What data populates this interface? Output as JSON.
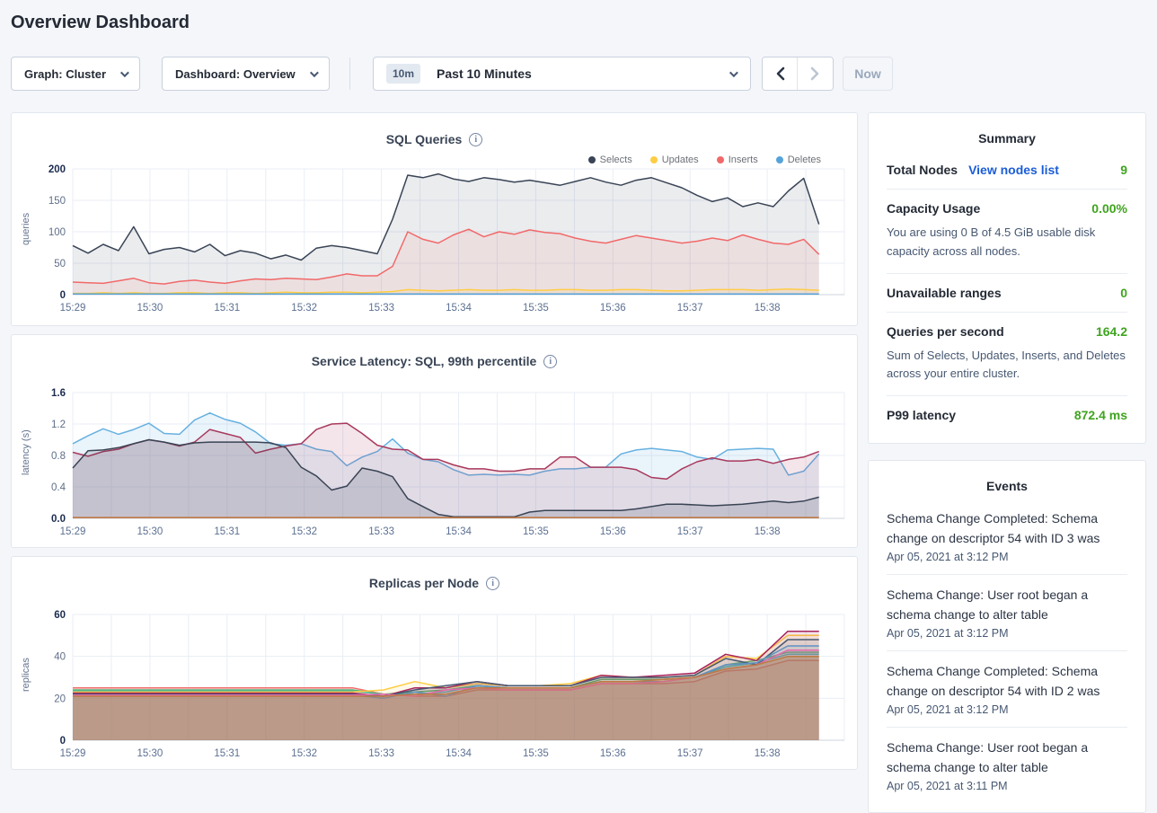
{
  "page": {
    "title": "Overview Dashboard"
  },
  "toolbar": {
    "graph_dropdown": {
      "label": "Graph: Cluster"
    },
    "dashboard_dropdown": {
      "label": "Dashboard: Overview"
    },
    "time_selector": {
      "badge": "10m",
      "label": "Past 10 Minutes"
    },
    "prev_button": "previous time range",
    "next_button": "next time range",
    "now_button": "Now"
  },
  "summary": {
    "title": "Summary",
    "value_color": "#3fa41f",
    "link_color": "#1b5dd6",
    "items": [
      {
        "label": "Total Nodes",
        "link": "View nodes list",
        "value": "9"
      },
      {
        "label": "Capacity Usage",
        "value": "0.00%",
        "description": "You are using 0 B of 4.5 GiB usable disk capacity across all nodes."
      },
      {
        "label": "Unavailable ranges",
        "value": "0"
      },
      {
        "label": "Queries per second",
        "value": "164.2",
        "description": "Sum of Selects, Updates, Inserts, and Deletes across your entire cluster."
      },
      {
        "label": "P99 latency",
        "value": "872.4 ms"
      }
    ]
  },
  "events": {
    "title": "Events",
    "items": [
      {
        "message": "Schema Change Completed: Schema change on descriptor 54 with ID 3 was",
        "timestamp": "Apr 05, 2021 at 3:12 PM"
      },
      {
        "message": "Schema Change: User root began a schema change to alter table",
        "timestamp": "Apr 05, 2021 at 3:12 PM"
      },
      {
        "message": "Schema Change Completed: Schema change on descriptor 54 with ID 2 was",
        "timestamp": "Apr 05, 2021 at 3:12 PM"
      },
      {
        "message": "Schema Change: User root began a schema change to alter table",
        "timestamp": "Apr 05, 2021 at 3:11 PM"
      }
    ]
  },
  "chart_data": [
    {
      "type": "area",
      "title": "SQL Queries",
      "ylabel": "queries",
      "ylim": [
        0,
        200
      ],
      "y_tick_values": [
        0,
        50,
        100,
        150,
        200
      ],
      "y_tick_labels": [
        "0",
        "50",
        "100",
        "150",
        "200"
      ],
      "x_ticks": [
        "15:29",
        "15:30",
        "15:31",
        "15:32",
        "15:33",
        "15:34",
        "15:35",
        "15:36",
        "15:37",
        "15:38"
      ],
      "x_range_minutes": 10,
      "data_end_fraction": 0.967,
      "grid": true,
      "legend_position": "top-right",
      "legend": [
        {
          "name": "Selects",
          "color": "#394455"
        },
        {
          "name": "Updates",
          "color": "#ffcd44"
        },
        {
          "name": "Inserts",
          "color": "#f16969"
        },
        {
          "name": "Deletes",
          "color": "#56a3d9"
        }
      ],
      "series": [
        {
          "name": "Selects",
          "color": "#394455",
          "fill": "rgba(57,68,85,0.10)",
          "values": [
            78,
            66,
            80,
            70,
            108,
            65,
            72,
            75,
            68,
            80,
            62,
            70,
            66,
            57,
            63,
            55,
            74,
            78,
            75,
            70,
            65,
            120,
            190,
            186,
            192,
            184,
            180,
            186,
            183,
            179,
            182,
            178,
            174,
            180,
            186,
            179,
            174,
            182,
            186,
            178,
            170,
            158,
            148,
            154,
            140,
            146,
            140,
            165,
            185,
            112
          ]
        },
        {
          "name": "Inserts",
          "color": "#f16969",
          "fill": "rgba(241,105,105,0.10)",
          "values": [
            20,
            19,
            18,
            22,
            26,
            19,
            17,
            21,
            23,
            20,
            18,
            22,
            25,
            24,
            26,
            25,
            24,
            28,
            33,
            30,
            30,
            45,
            100,
            88,
            82,
            95,
            104,
            92,
            100,
            96,
            103,
            99,
            97,
            90,
            85,
            82,
            88,
            94,
            90,
            86,
            82,
            85,
            90,
            86,
            95,
            88,
            82,
            80,
            88,
            64
          ]
        },
        {
          "name": "Updates",
          "color": "#ffcd44",
          "fill": "rgba(255,205,68,0.12)",
          "values": [
            2,
            2,
            3,
            2,
            3,
            2,
            2,
            3,
            3,
            2,
            3,
            3,
            2,
            3,
            4,
            3,
            3,
            4,
            4,
            3,
            4,
            5,
            8,
            7,
            6,
            7,
            8,
            7,
            7,
            8,
            7,
            7,
            8,
            8,
            7,
            7,
            8,
            8,
            7,
            6,
            6,
            7,
            8,
            8,
            8,
            7,
            8,
            9,
            8,
            7
          ]
        },
        {
          "name": "Deletes",
          "color": "#56a3d9",
          "fill": "rgba(86,163,217,0.12)",
          "values": [
            1,
            1,
            1,
            1,
            1,
            1,
            1,
            1,
            1,
            1,
            1,
            1,
            1,
            1,
            1,
            1,
            1,
            1,
            1,
            1,
            1,
            1,
            1,
            1,
            1,
            1,
            1,
            1,
            1,
            1,
            1,
            1,
            1,
            1,
            1,
            1,
            1,
            1,
            1,
            1,
            1,
            1,
            1,
            1,
            1,
            1,
            1,
            1,
            1,
            1
          ]
        }
      ]
    },
    {
      "type": "area",
      "title": "Service Latency: SQL, 99th percentile",
      "ylabel": "latency (s)",
      "ylim": [
        0,
        1.6
      ],
      "y_tick_values": [
        0,
        0.4,
        0.8,
        1.2,
        1.6
      ],
      "y_tick_labels": [
        "0.0",
        "0.4",
        "0.8",
        "1.2",
        "1.6"
      ],
      "x_ticks": [
        "15:29",
        "15:30",
        "15:31",
        "15:32",
        "15:33",
        "15:34",
        "15:35",
        "15:36",
        "15:37",
        "15:38"
      ],
      "x_range_minutes": 10,
      "data_end_fraction": 0.967,
      "grid": true,
      "series": [
        {
          "name": "node-blue",
          "color": "#67b1e0",
          "fill": "rgba(103,177,224,0.14)",
          "values": [
            0.95,
            1.05,
            1.14,
            1.07,
            1.13,
            1.21,
            1.08,
            1.07,
            1.25,
            1.34,
            1.26,
            1.21,
            1.1,
            0.95,
            0.93,
            0.95,
            0.88,
            0.85,
            0.67,
            0.78,
            0.85,
            1.01,
            0.83,
            0.75,
            0.72,
            0.62,
            0.55,
            0.56,
            0.55,
            0.56,
            0.55,
            0.6,
            0.63,
            0.63,
            0.65,
            0.65,
            0.82,
            0.87,
            0.89,
            0.87,
            0.85,
            0.78,
            0.75,
            0.87,
            0.88,
            0.89,
            0.88,
            0.55,
            0.6,
            0.82
          ]
        },
        {
          "name": "node-maroon",
          "color": "#a8395c",
          "fill": "rgba(168,57,92,0.13)",
          "values": [
            0.84,
            0.79,
            0.85,
            0.88,
            0.95,
            1.0,
            0.97,
            0.92,
            0.97,
            1.13,
            1.08,
            1.03,
            0.83,
            0.88,
            0.92,
            0.95,
            1.13,
            1.2,
            1.21,
            1.08,
            0.93,
            0.88,
            0.87,
            0.75,
            0.75,
            0.68,
            0.63,
            0.63,
            0.6,
            0.6,
            0.63,
            0.63,
            0.78,
            0.78,
            0.65,
            0.65,
            0.65,
            0.62,
            0.52,
            0.5,
            0.63,
            0.72,
            0.77,
            0.73,
            0.73,
            0.75,
            0.7,
            0.75,
            0.78,
            0.85
          ]
        },
        {
          "name": "node-navy",
          "color": "#394455",
          "fill": "rgba(57,68,85,0.16)",
          "values": [
            0.64,
            0.86,
            0.87,
            0.9,
            0.95,
            1.0,
            0.97,
            0.93,
            0.96,
            0.97,
            0.97,
            0.97,
            0.97,
            0.96,
            0.9,
            0.65,
            0.54,
            0.36,
            0.41,
            0.64,
            0.6,
            0.53,
            0.25,
            0.15,
            0.05,
            0.02,
            0.02,
            0.02,
            0.02,
            0.02,
            0.08,
            0.1,
            0.1,
            0.1,
            0.1,
            0.1,
            0.1,
            0.12,
            0.15,
            0.18,
            0.18,
            0.17,
            0.16,
            0.17,
            0.18,
            0.2,
            0.22,
            0.2,
            0.22,
            0.27
          ]
        },
        {
          "name": "node-orange",
          "color": "#c1763f",
          "fill": "rgba(193,118,63,0.10)",
          "values": [
            0.01,
            0.01,
            0.01,
            0.01,
            0.01,
            0.01,
            0.01,
            0.01,
            0.01,
            0.01,
            0.01,
            0.01,
            0.01,
            0.01,
            0.01,
            0.01,
            0.01,
            0.01,
            0.01,
            0.01,
            0.01,
            0.01,
            0.01,
            0.01,
            0.01,
            0.01,
            0.01,
            0.01,
            0.01,
            0.01,
            0.01,
            0.01,
            0.01,
            0.01,
            0.01,
            0.01,
            0.01,
            0.01,
            0.01,
            0.01,
            0.01,
            0.01,
            0.01,
            0.01,
            0.01,
            0.01,
            0.01,
            0.01,
            0.01,
            0.01
          ]
        }
      ]
    },
    {
      "type": "area",
      "title": "Replicas per Node",
      "ylabel": "replicas",
      "ylim": [
        0,
        60
      ],
      "y_tick_values": [
        0,
        20,
        40,
        60
      ],
      "y_tick_labels": [
        "0",
        "20",
        "40",
        "60"
      ],
      "x_ticks": [
        "15:29",
        "15:30",
        "15:31",
        "15:32",
        "15:33",
        "15:34",
        "15:35",
        "15:36",
        "15:37",
        "15:38"
      ],
      "x_range_minutes": 10,
      "data_end_fraction": 0.967,
      "grid": true,
      "series": [
        {
          "name": "node-1",
          "color": "#f16969",
          "fill": "rgba(241,105,105,0.12)",
          "values": [
            25,
            25,
            25,
            25,
            25,
            25,
            25,
            25,
            25,
            25,
            22,
            21,
            21,
            24,
            24,
            24,
            24,
            27,
            27,
            27,
            28,
            33,
            34,
            38,
            38
          ]
        },
        {
          "name": "node-2",
          "color": "#51b56f",
          "fill": "rgba(81,181,111,0.12)",
          "values": [
            24,
            24,
            24,
            24,
            24,
            24,
            24,
            24,
            24,
            24,
            22,
            23,
            24,
            26,
            25,
            25,
            25,
            29,
            29,
            29,
            30,
            36,
            38,
            42,
            42
          ]
        },
        {
          "name": "node-3",
          "color": "#45b5ad",
          "fill": "rgba(69,181,173,0.12)",
          "values": [
            23.5,
            23.5,
            23.5,
            23.5,
            23.5,
            23.5,
            23.5,
            23.5,
            23.5,
            23.5,
            22,
            22,
            23,
            26,
            25,
            25,
            25,
            28,
            28,
            28,
            30,
            35,
            37,
            41,
            41
          ]
        },
        {
          "name": "node-4",
          "color": "#ffcd44",
          "fill": "rgba(255,205,68,0.12)",
          "values": [
            23,
            23,
            23,
            23,
            23,
            23,
            23,
            23,
            23,
            23,
            24,
            28,
            25,
            27,
            26,
            26,
            27,
            31,
            30,
            30,
            31,
            40,
            39,
            50,
            50
          ]
        },
        {
          "name": "node-5",
          "color": "#a8235c",
          "fill": "rgba(168,35,92,0.12)",
          "values": [
            22.5,
            22.5,
            22.5,
            22.5,
            22.5,
            22.5,
            22.5,
            22.5,
            22.5,
            22.5,
            21,
            25,
            25,
            28,
            26,
            26,
            26,
            31,
            30,
            31,
            32,
            41,
            38,
            52,
            52
          ]
        },
        {
          "name": "node-6",
          "color": "#475872",
          "fill": "rgba(71,88,114,0.12)",
          "values": [
            22,
            22,
            22,
            22,
            22,
            22,
            22,
            22,
            22,
            22,
            21,
            24,
            26,
            28,
            26,
            26,
            26,
            30,
            30,
            30,
            31,
            39,
            36,
            48,
            48
          ]
        },
        {
          "name": "node-7",
          "color": "#6092c2",
          "fill": "rgba(96,146,194,0.12)",
          "values": [
            21.5,
            21.5,
            21.5,
            21.5,
            21.5,
            21.5,
            21.5,
            21.5,
            21.5,
            21.5,
            20,
            23,
            21,
            26,
            25,
            25,
            25,
            28,
            28,
            28,
            30,
            36,
            37,
            45,
            45
          ]
        },
        {
          "name": "node-8",
          "color": "#e568ab",
          "fill": "rgba(229,104,171,0.12)",
          "values": [
            21.5,
            21.5,
            21.5,
            21.5,
            21.5,
            21.5,
            21.5,
            21.5,
            21.5,
            21.5,
            22,
            21,
            24,
            25,
            24,
            24,
            24,
            27,
            27,
            28,
            30,
            34,
            36,
            43,
            43
          ]
        },
        {
          "name": "node-9",
          "color": "#bd7a43",
          "fill": "rgba(189,122,67,0.35)",
          "values": [
            21,
            21,
            21,
            21,
            21,
            21,
            21,
            21,
            21,
            21,
            21,
            22,
            22,
            25,
            25,
            25,
            25,
            28,
            28,
            29,
            30,
            34,
            36,
            40,
            40
          ]
        }
      ]
    }
  ]
}
